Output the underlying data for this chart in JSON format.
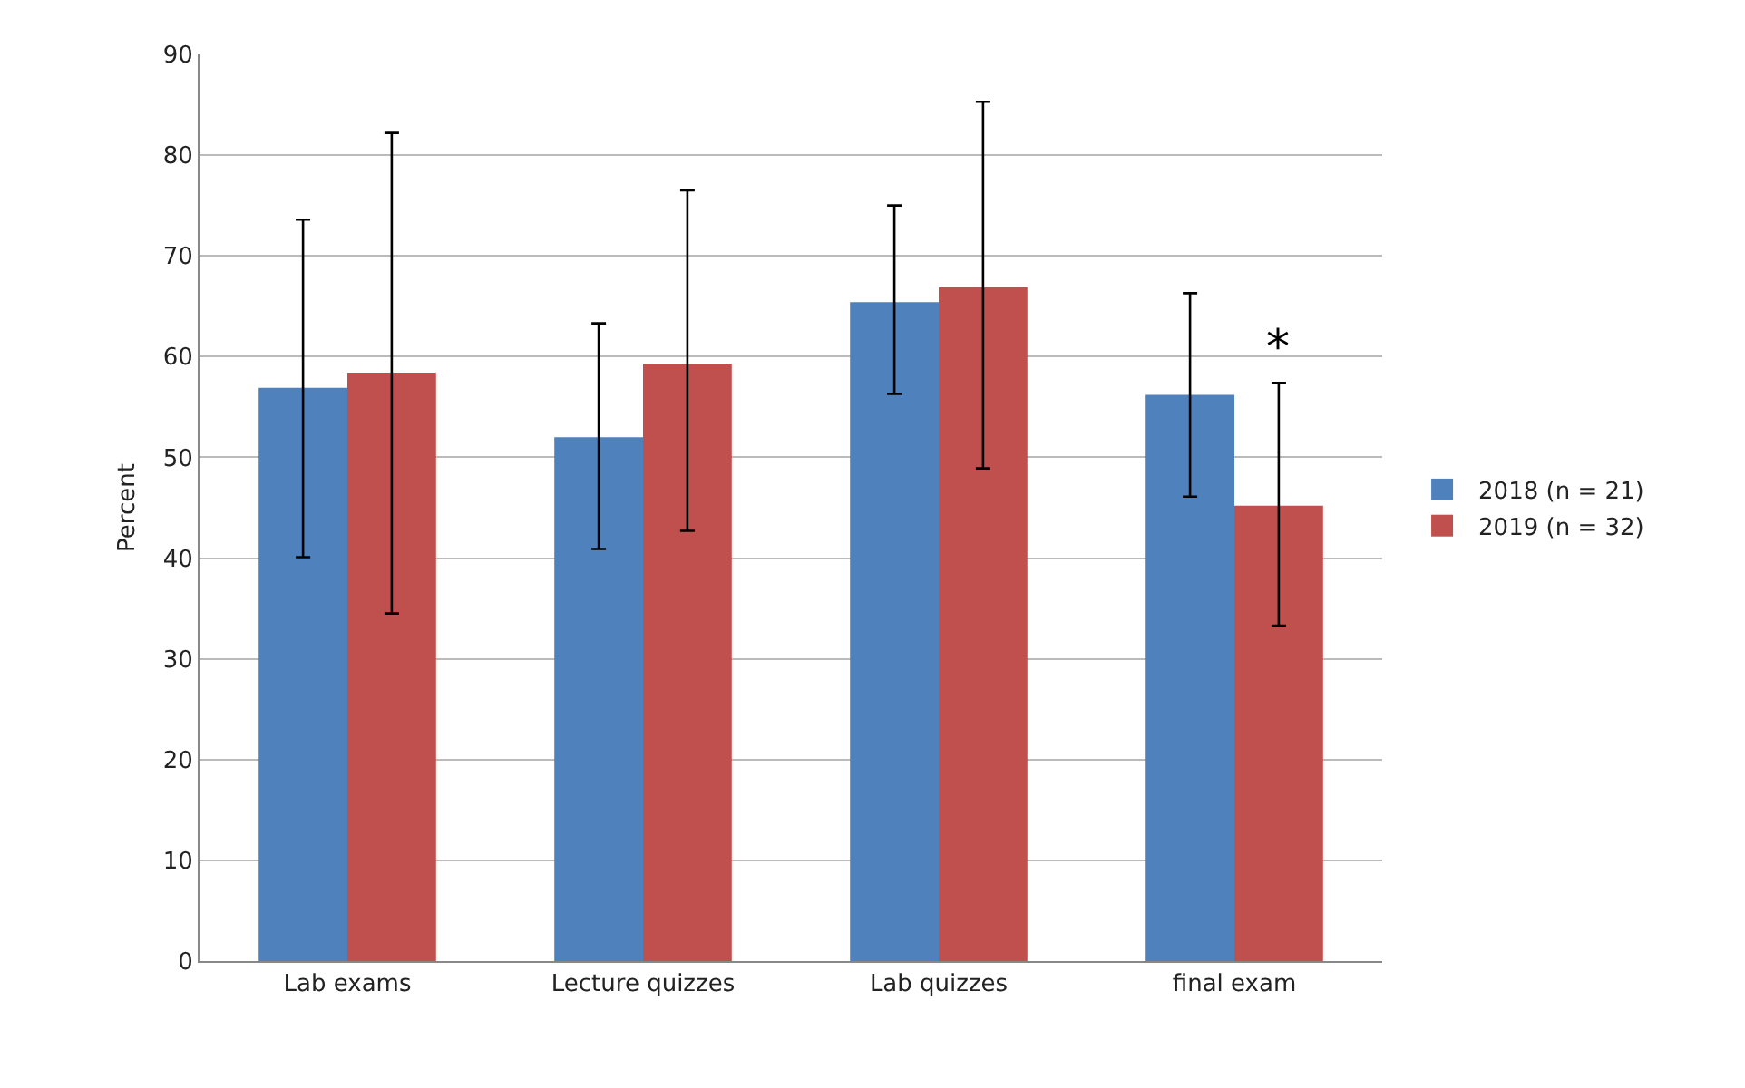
{
  "chart_data": {
    "type": "bar",
    "ylabel": "Percent",
    "categories": [
      "Lab exams",
      "Lecture quizzes",
      "Lab quizzes",
      "final exam"
    ],
    "series": [
      {
        "name": "2018 (n = 21)",
        "color": "#4f81bd",
        "values": [
          56.9,
          52.0,
          65.4,
          56.2
        ],
        "errors": [
          [
            40.1,
            73.6
          ],
          [
            40.9,
            63.3
          ],
          [
            56.3,
            75.0
          ],
          [
            46.1,
            66.3
          ]
        ]
      },
      {
        "name": "2019 (n = 32)",
        "color": "#c0504d",
        "values": [
          58.4,
          59.3,
          66.9,
          45.2
        ],
        "errors": [
          [
            34.5,
            82.2
          ],
          [
            42.7,
            76.5
          ],
          [
            48.9,
            85.3
          ],
          [
            33.3,
            57.4
          ]
        ]
      }
    ],
    "ylim": [
      0,
      90
    ],
    "yticks": [
      0,
      10,
      20,
      30,
      40,
      50,
      60,
      70,
      80,
      90
    ],
    "grid": "y",
    "legend": "right",
    "annotations": [
      "*"
    ]
  }
}
